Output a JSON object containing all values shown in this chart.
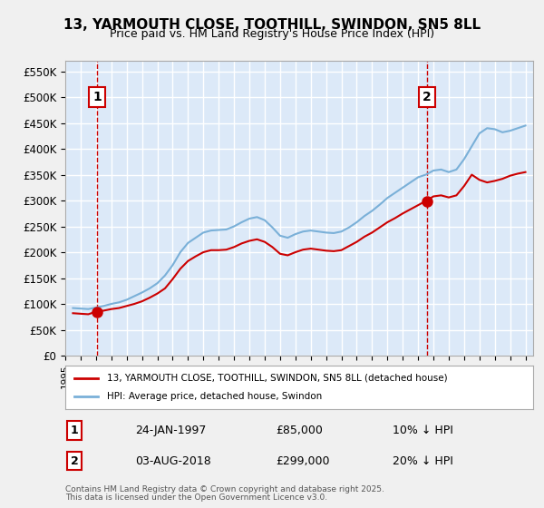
{
  "title": "13, YARMOUTH CLOSE, TOOTHILL, SWINDON, SN5 8LL",
  "subtitle": "Price paid vs. HM Land Registry's House Price Index (HPI)",
  "ylabel_ticks": [
    "£0",
    "£50K",
    "£100K",
    "£150K",
    "£200K",
    "£250K",
    "£300K",
    "£350K",
    "£400K",
    "£450K",
    "£500K",
    "£550K"
  ],
  "ytick_values": [
    0,
    50000,
    100000,
    150000,
    200000,
    250000,
    300000,
    350000,
    400000,
    450000,
    500000,
    550000
  ],
  "ylim": [
    0,
    570000
  ],
  "xlim_year": [
    1995,
    2025.5
  ],
  "background_color": "#eef3fb",
  "plot_bg": "#dce9f8",
  "grid_color": "#ffffff",
  "hpi_line_color": "#7ab0d8",
  "price_line_color": "#cc0000",
  "vline_color": "#cc0000",
  "marker_color": "#cc0000",
  "annotation_box_color": "#cc0000",
  "sale1_year": 1997.07,
  "sale1_price": 85000,
  "sale1_label": "1",
  "sale1_date": "24-JAN-1997",
  "sale2_year": 2018.59,
  "sale2_price": 299000,
  "sale2_label": "2",
  "sale2_date": "03-AUG-2018",
  "legend_entry1": "13, YARMOUTH CLOSE, TOOTHILL, SWINDON, SN5 8LL (detached house)",
  "legend_entry2": "HPI: Average price, detached house, Swindon",
  "footer1": "Contains HM Land Registry data © Crown copyright and database right 2025.",
  "footer2": "This data is licensed under the Open Government Licence v3.0.",
  "table_row1": [
    "1",
    "24-JAN-1997",
    "£85,000",
    "10% ↓ HPI"
  ],
  "table_row2": [
    "2",
    "03-AUG-2018",
    "£299,000",
    "20% ↓ HPI"
  ]
}
